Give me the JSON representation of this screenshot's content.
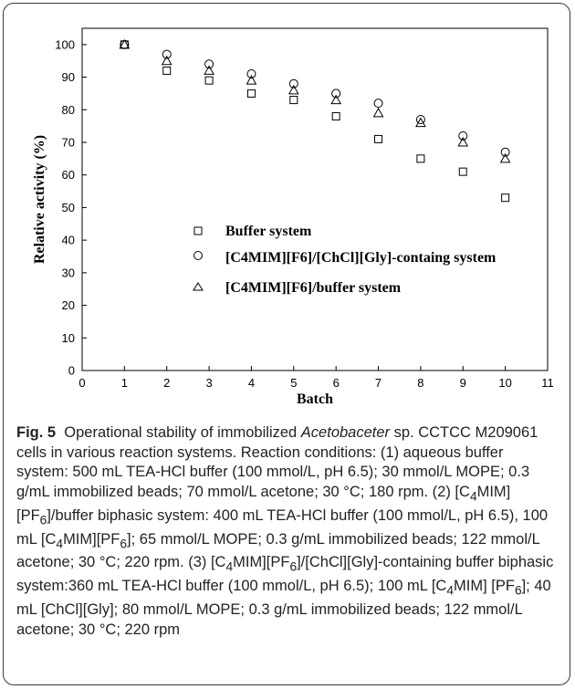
{
  "chart_data": {
    "type": "scatter",
    "xlabel": "Batch",
    "ylabel": "Relative activity (%)",
    "xlim": [
      0,
      11
    ],
    "ylim": [
      0,
      105
    ],
    "xticks": [
      "0",
      "1",
      "2",
      "3",
      "4",
      "5",
      "6",
      "7",
      "8",
      "9",
      "10",
      "11"
    ],
    "yticks": [
      "0",
      "10",
      "20",
      "30",
      "40",
      "50",
      "60",
      "70",
      "80",
      "90",
      "100"
    ],
    "grid": false,
    "legend_position": "center-left",
    "x": [
      1,
      2,
      3,
      4,
      5,
      6,
      7,
      8,
      9,
      10
    ],
    "series": [
      {
        "name": "Buffer system",
        "marker": "square",
        "values": [
          100,
          92,
          89,
          85,
          83,
          78,
          71,
          65,
          61,
          53
        ]
      },
      {
        "name": "[C4MIM][F6]/[ChCl][Gly]-containg system",
        "marker": "circle",
        "values": [
          100,
          97,
          94,
          91,
          88,
          85,
          82,
          77,
          72,
          67
        ]
      },
      {
        "name": "[C4MIM][F6]/buffer system",
        "marker": "triangle",
        "values": [
          100,
          95,
          92,
          89,
          86,
          83,
          79,
          76,
          70,
          65
        ]
      }
    ]
  },
  "caption": {
    "label": "Fig. 5",
    "t1": "Operational stability of immobilized ",
    "organism": "Acetobaceter",
    "t2": " sp. CCTCC M209061 cells in various reaction systems. Reaction conditions: (1) aqueous buffer system: 500 mL TEA-HCl buffer (100 mmol/L, pH 6.5); 30 mmol/L MOPE; 0.3 g/mL immobilized beads; 70 mmol/L acetone; 30 °C; 180 rpm. (2) [C",
    "s1": "4",
    "t3": "MIM][PF",
    "s2": "6",
    "t4": "]/buffer biphasic system: 400 mL TEA-HCl buffer (100 mmol/L, pH 6.5), 100 mL [C",
    "s3": "4",
    "t5": "MIM][PF",
    "s4": "6",
    "t6": "]; 65 mmol/L MOPE; 0.3 g/mL immobilized beads; 122 mmol/L acetone; 30 °C; 220 rpm. (3) [C",
    "s5": "4",
    "t7": "MIM][PF",
    "s6": "6",
    "t8": "]/[ChCl][Gly]-containing buffer biphasic system:360 mL TEA-HCl buffer (100 mmol/L, pH 6.5); 100 mL [C",
    "s7": "4",
    "t9": "MIM] [PF",
    "s8": "6",
    "t10": "]; 40 mL [ChCl][Gly]; 80 mmol/L MOPE; 0.3 g/mL immobilized beads; 122 mmol/L acetone; 30 °C; 220 rpm"
  }
}
